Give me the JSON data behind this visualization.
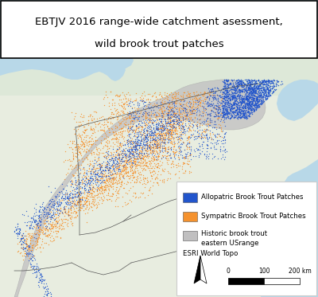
{
  "title_line1": "EBTJV 2016 range-wide catchment asessment,",
  "title_line2": "wild brook trout patches",
  "allopatric_color": "#2255cc",
  "sympatric_color": "#f5922e",
  "historic_color": "#c0bfc0",
  "water_color": "#b8d8e8",
  "land_color_main": "#e8ede0",
  "land_color_alt": "#dde8d8",
  "border_color": "#555555",
  "legend_labels": [
    "Allopatric Brook Trout Patches",
    "Sympatric Brook Trout Patches",
    "Historic brook trout\neastern USrange"
  ],
  "legend_source": "ESRI World Topo",
  "title_fontsize": 9.5,
  "legend_fontsize": 6.2,
  "fig_width": 4.0,
  "fig_height": 3.73,
  "dpi": 100
}
